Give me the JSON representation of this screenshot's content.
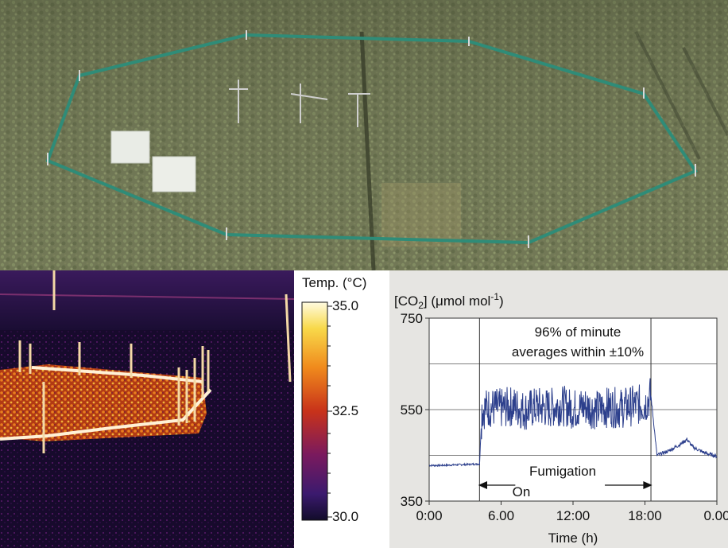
{
  "colorbar": {
    "title": "Temp. (°C)",
    "ticks": [
      "35.0",
      "32.5",
      "30.0"
    ],
    "min": 30.0,
    "max": 35.0
  },
  "chart_data": {
    "type": "line",
    "title": "",
    "ylabel_prefix": "[CO",
    "ylabel_sub": "2",
    "ylabel_mid": "] (μmol mol",
    "ylabel_sup": "-1",
    "ylabel_end": ")",
    "xlabel": "Time (h)",
    "x_tick_labels": [
      "0:00",
      "6.00",
      "12:00",
      "18:00",
      "0.00"
    ],
    "x_ticks_hours": [
      0,
      6,
      12,
      18,
      24
    ],
    "y_tick_labels": [
      "750",
      "550",
      "350"
    ],
    "y_ticks": [
      750,
      550,
      350
    ],
    "ylim": [
      350,
      750
    ],
    "xlim": [
      0,
      24
    ],
    "gridlines_y": [
      450,
      550,
      650
    ],
    "annotation_top": [
      "96% of minute",
      "averages within ±10%"
    ],
    "annotation_bottom": [
      "Fumigation",
      "On"
    ],
    "fumigation_start_h": 4.2,
    "fumigation_end_h": 18.5,
    "series": [
      {
        "color": "#2c3f8c",
        "x": [
          0,
          1,
          2,
          3,
          4,
          4.2,
          4.4,
          5,
          6,
          7,
          8,
          9,
          10,
          11,
          12,
          13,
          14,
          15,
          16,
          17,
          18,
          18.5,
          19,
          20,
          21,
          21.5,
          22,
          23,
          24
        ],
        "y": [
          428,
          428,
          429,
          430,
          431,
          431,
          550,
          555,
          552,
          558,
          548,
          556,
          553,
          560,
          551,
          557,
          549,
          556,
          553,
          559,
          562,
          580,
          450,
          460,
          475,
          485,
          468,
          455,
          448
        ]
      }
    ]
  }
}
